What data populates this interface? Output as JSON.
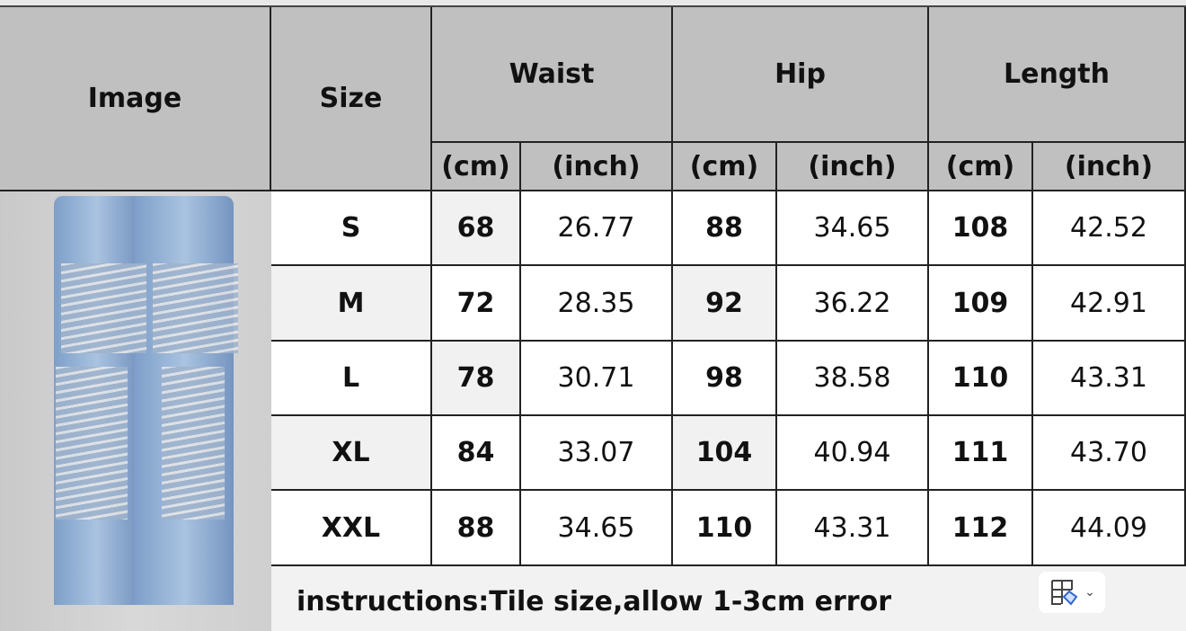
{
  "headers": {
    "image": "Image",
    "size": "Size",
    "waist": "Waist",
    "hip": "Hip",
    "length": "Length",
    "cm": "(cm)",
    "inch": "(inch)"
  },
  "rows": [
    {
      "size": "S",
      "waist_cm": "68",
      "waist_in": "26.77",
      "hip_cm": "88",
      "hip_in": "34.65",
      "len_cm": "108",
      "len_in": "42.52"
    },
    {
      "size": "M",
      "waist_cm": "72",
      "waist_in": "28.35",
      "hip_cm": "92",
      "hip_in": "36.22",
      "len_cm": "109",
      "len_in": "42.91"
    },
    {
      "size": "L",
      "waist_cm": "78",
      "waist_in": "30.71",
      "hip_cm": "98",
      "hip_in": "38.58",
      "len_cm": "110",
      "len_in": "43.31"
    },
    {
      "size": "XL",
      "waist_cm": "84",
      "waist_in": "33.07",
      "hip_cm": "104",
      "hip_in": "40.94",
      "len_cm": "111",
      "len_in": "43.70"
    },
    {
      "size": "XXL",
      "waist_cm": "88",
      "waist_in": "34.65",
      "hip_cm": "110",
      "hip_in": "43.31",
      "len_cm": "112",
      "len_in": "44.09"
    }
  ],
  "footer": {
    "note": "instructions:Tile size,allow 1-3cm error",
    "icon": "table-format-icon"
  }
}
